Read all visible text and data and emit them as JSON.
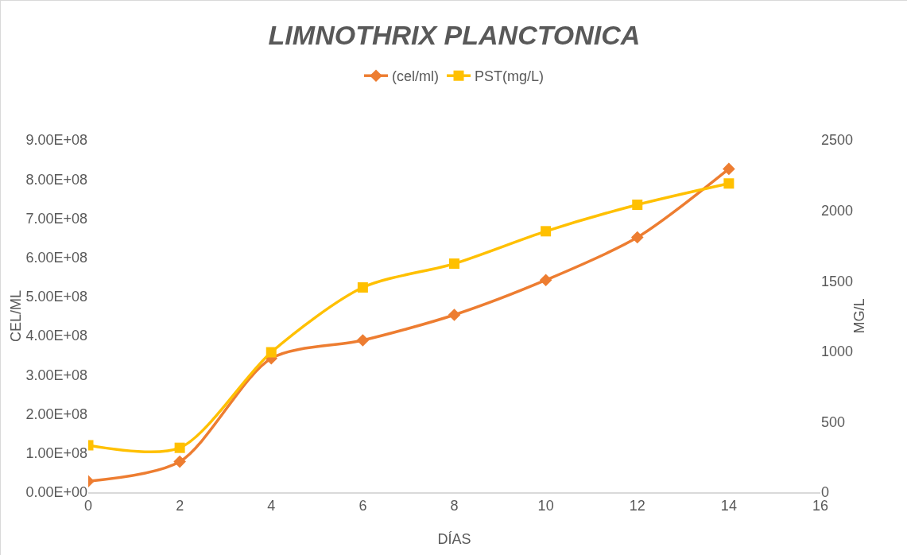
{
  "chart_data": {
    "type": "line",
    "title": "LIMNOTHRIX PLANCTONICA",
    "xlabel": "DÍAS",
    "ylabel": "CEL/ML",
    "y2label": "MG/L",
    "x": [
      0,
      2,
      4,
      6,
      8,
      10,
      12,
      14
    ],
    "series": [
      {
        "name": "(cel/ml)",
        "color": "#ed7d31",
        "marker": "diamond",
        "values": [
          28000000,
          78000000,
          342000000,
          388000000,
          453000000,
          542000000,
          651000000,
          826000000
        ]
      },
      {
        "name": "PST(mg/L)",
        "color": "#ffc000",
        "marker": "square",
        "axis": "y2",
        "values": [
          333,
          315,
          993,
          1453,
          1622,
          1852,
          2040,
          2191
        ]
      }
    ],
    "xlim": [
      0,
      16
    ],
    "xticks": [
      0,
      2,
      4,
      6,
      8,
      10,
      12,
      14,
      16
    ],
    "ylim": [
      0,
      900000000
    ],
    "yticks": [
      {
        "value": 0,
        "label": "0.00E+00"
      },
      {
        "value": 100000000,
        "label": "1.00E+08"
      },
      {
        "value": 200000000,
        "label": "2.00E+08"
      },
      {
        "value": 300000000,
        "label": "3.00E+08"
      },
      {
        "value": 400000000,
        "label": "4.00E+08"
      },
      {
        "value": 500000000,
        "label": "5.00E+08"
      },
      {
        "value": 600000000,
        "label": "6.00E+08"
      },
      {
        "value": 700000000,
        "label": "7.00E+08"
      },
      {
        "value": 800000000,
        "label": "8.00E+08"
      },
      {
        "value": 900000000,
        "label": "9.00E+08"
      }
    ],
    "y2lim": [
      0,
      2500
    ],
    "y2ticks": [
      0,
      500,
      1000,
      1500,
      2000,
      2500
    ],
    "grid": false,
    "legend": "top",
    "line_style": "solid"
  }
}
